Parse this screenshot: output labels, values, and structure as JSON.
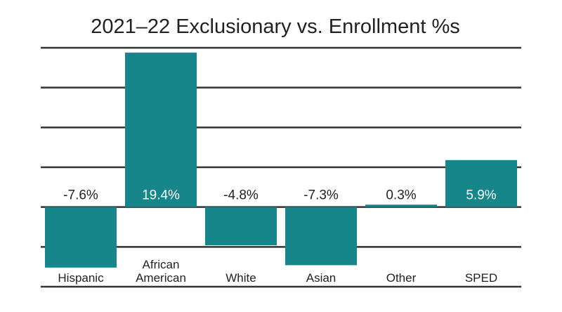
{
  "chart_data": {
    "type": "bar",
    "title": "2021–22 Exclusionary vs. Enrollment %s",
    "xlabel": "",
    "ylabel": "",
    "categories": [
      [
        "Hispanic"
      ],
      [
        "African",
        "American"
      ],
      [
        "White"
      ],
      [
        "Asian"
      ],
      [
        "Other"
      ],
      [
        "SPED"
      ]
    ],
    "values": [
      -7.6,
      19.4,
      -4.8,
      -7.3,
      0.3,
      5.9
    ],
    "data_labels": [
      "-7.6%",
      "19.4%",
      "-4.8%",
      "-7.3%",
      "0.3%",
      "5.9%"
    ],
    "ylim": [
      -10,
      20
    ],
    "grid": true,
    "legend": "none",
    "colors": {
      "bar": "#17868a",
      "grid": "#333333",
      "text": "#222222",
      "label_on_bar": "#ffffff"
    }
  }
}
